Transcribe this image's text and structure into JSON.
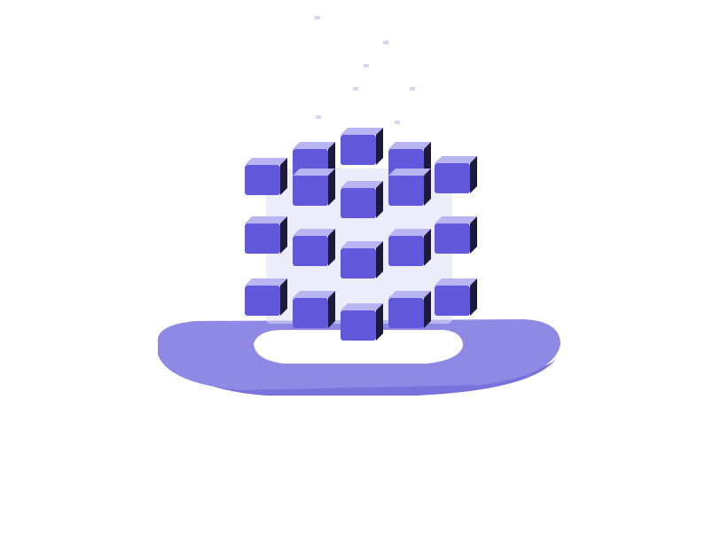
{
  "illustration": {
    "subject": "cube-grid-on-platform-icon",
    "colors": {
      "background": "#ffffff",
      "platform": "#8f89e6",
      "platform_edge": "#7a72dc",
      "platform_hole": "#ffffff",
      "cube_front": "#6258db",
      "cube_top": "#b9b4f2",
      "cube_side": "#1d1a3a",
      "glass": "#dedcf7",
      "specks": "#d8d6ee"
    }
  }
}
